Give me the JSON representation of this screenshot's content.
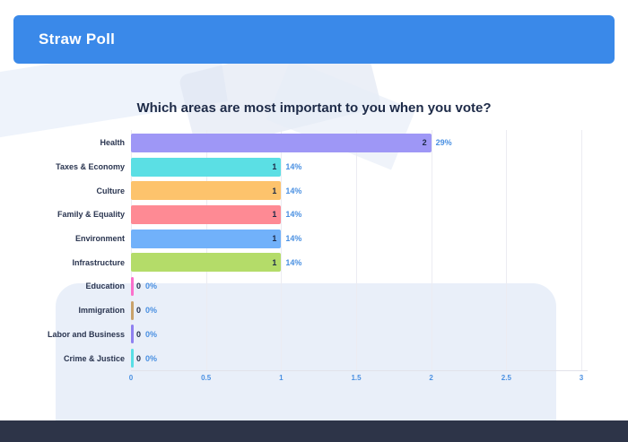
{
  "header": {
    "title": "Straw Poll",
    "bg_color": "#3a89e9",
    "text_color": "#ffffff"
  },
  "footer": {
    "bg_color": "#2d3448"
  },
  "chart_data": {
    "type": "bar",
    "orientation": "horizontal",
    "title": "Which areas are most important to you when you vote?",
    "categories": [
      "Health",
      "Taxes & Economy",
      "Culture",
      "Family & Equality",
      "Environment",
      "Infrastructure",
      "Education",
      "Immigration",
      "Labor and Business",
      "Crime & Justice"
    ],
    "values": [
      2,
      1,
      1,
      1,
      1,
      1,
      0,
      0,
      0,
      0
    ],
    "percent_labels": [
      "29%",
      "14%",
      "14%",
      "14%",
      "14%",
      "14%",
      "0%",
      "0%",
      "0%",
      "0%"
    ],
    "bar_colors": [
      "#9e97f6",
      "#5bdfe4",
      "#fdc36c",
      "#fe8a94",
      "#71b1fa",
      "#b4dc69",
      "#fb70cb",
      "#c9a26b",
      "#8f80f0",
      "#59dfe6"
    ],
    "xlim": [
      0,
      3
    ],
    "x_tick_labels": [
      "0",
      "0.5",
      "1",
      "1.5",
      "2",
      "2.5",
      "3"
    ],
    "grid": true,
    "legend": false,
    "category_label_color": "#2a3550",
    "value_label_color": "#1e2b48",
    "percent_label_color": "#4a90e2",
    "tick_label_color": "#4a90e2"
  }
}
